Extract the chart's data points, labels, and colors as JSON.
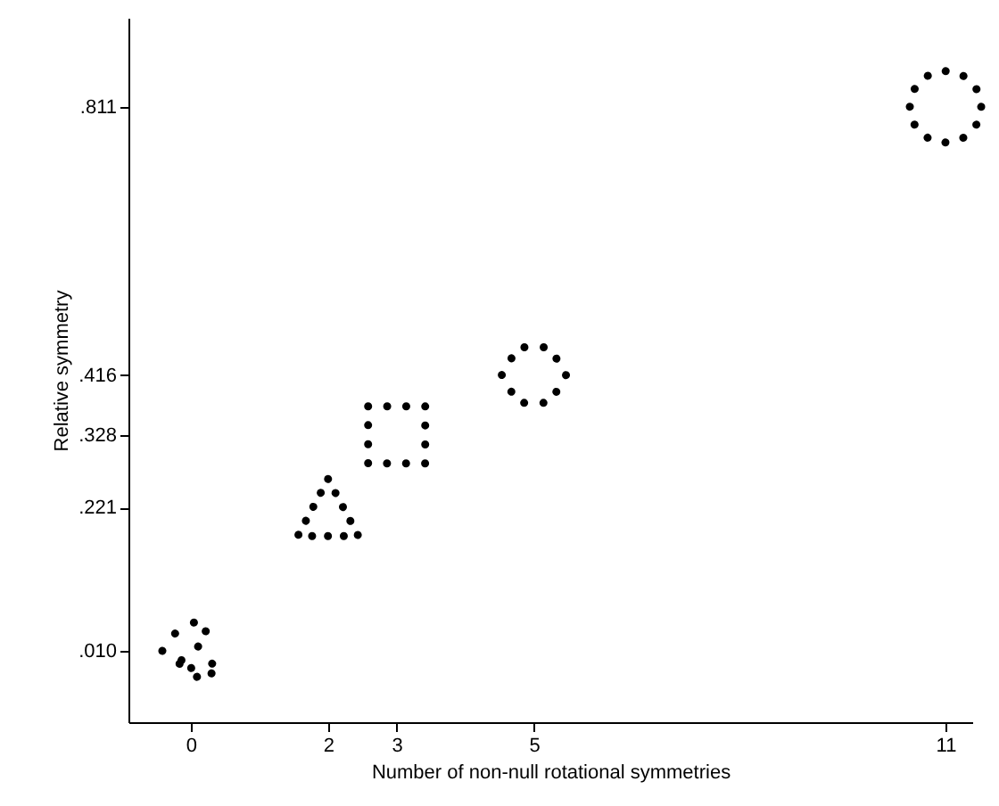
{
  "chart_data": {
    "type": "scatter",
    "xlabel": "Number of non-null rotational symmetries",
    "ylabel": "Relative symmetry",
    "x": [
      0,
      2,
      3,
      5,
      11
    ],
    "series": [
      {
        "color": "#000000",
        "values": [
          0.01,
          0.221,
          0.328,
          0.416,
          0.811
        ]
      }
    ],
    "xlim": [
      -0.91,
      11.39
    ],
    "xticks": [
      0,
      2,
      3,
      5,
      11
    ],
    "ylim": [
      -0.095,
      0.942
    ],
    "yticks": [
      {
        "value": 0.01,
        "label": ".010"
      },
      {
        "value": 0.221,
        "label": ".221"
      },
      {
        "value": 0.328,
        "label": ".328"
      },
      {
        "value": 0.416,
        "label": ".416"
      },
      {
        "value": 0.811,
        "label": ".811"
      }
    ]
  }
}
